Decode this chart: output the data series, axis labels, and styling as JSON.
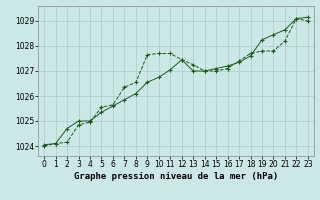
{
  "title": "Graphe pression niveau de la mer (hPa)",
  "bg_color": "#cce8e6",
  "grid_color": "#aacccc",
  "line_color": "#1a5c1a",
  "x_ticks": [
    0,
    1,
    2,
    3,
    4,
    5,
    6,
    7,
    8,
    9,
    10,
    11,
    12,
    13,
    14,
    15,
    16,
    17,
    18,
    19,
    20,
    21,
    22,
    23
  ],
  "y_ticks": [
    1024,
    1025,
    1026,
    1027,
    1028,
    1029
  ],
  "ylim": [
    1023.6,
    1029.6
  ],
  "xlim": [
    -0.5,
    23.5
  ],
  "series1_x": [
    0,
    1,
    2,
    3,
    4,
    5,
    6,
    7,
    8,
    9,
    10,
    11,
    12,
    13,
    14,
    15,
    16,
    17,
    18,
    19,
    20,
    21,
    22,
    23
  ],
  "series1_y": [
    1024.05,
    1024.1,
    1024.7,
    1025.0,
    1025.0,
    1025.35,
    1025.6,
    1025.85,
    1026.1,
    1026.55,
    1026.75,
    1027.05,
    1027.45,
    1027.0,
    1027.0,
    1027.1,
    1027.2,
    1027.35,
    1027.6,
    1028.25,
    1028.45,
    1028.65,
    1029.1,
    1029.15
  ],
  "series2_x": [
    0,
    1,
    2,
    3,
    4,
    5,
    6,
    7,
    8,
    9,
    10,
    11,
    12,
    13,
    14,
    15,
    16,
    17,
    18,
    19,
    20,
    21,
    22,
    23
  ],
  "series2_y": [
    1024.0,
    1024.1,
    1024.15,
    1024.85,
    1024.95,
    1025.55,
    1025.65,
    1026.35,
    1026.55,
    1027.65,
    1027.7,
    1027.7,
    1027.45,
    1027.25,
    1027.0,
    1027.0,
    1027.1,
    1027.4,
    1027.7,
    1027.8,
    1027.8,
    1028.2,
    1029.1,
    1029.0
  ],
  "title_fontsize": 6.5,
  "tick_fontsize": 5.5
}
